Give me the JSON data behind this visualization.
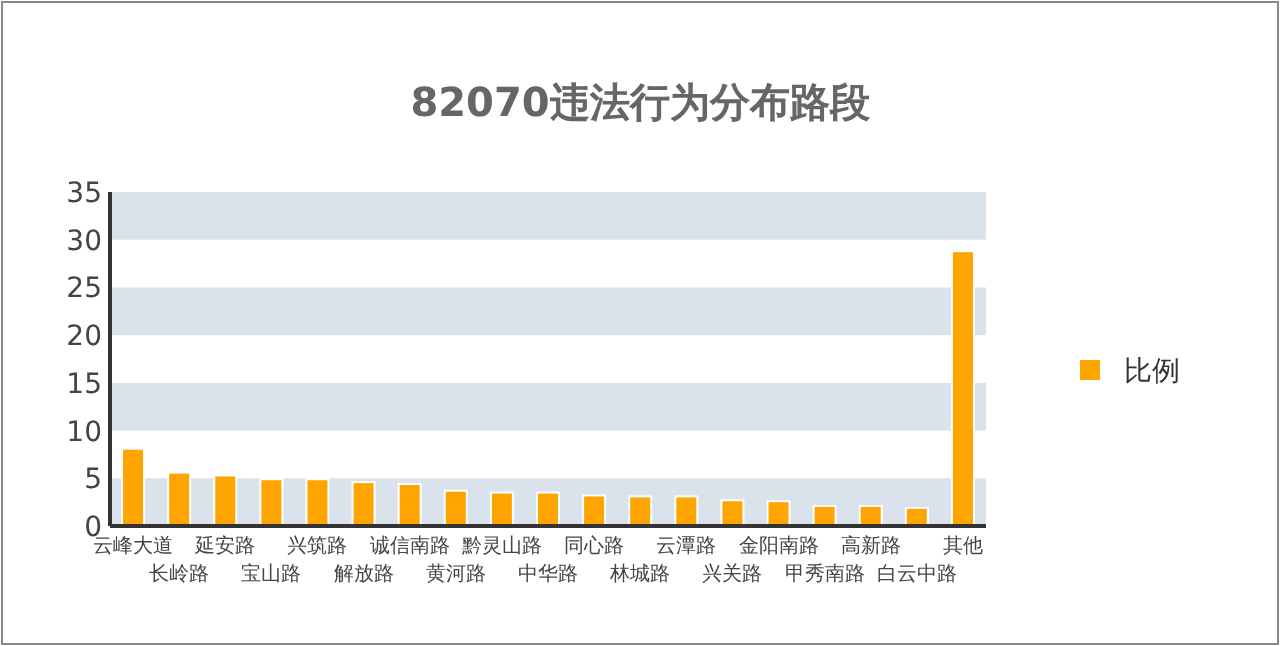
{
  "chart_data": {
    "type": "bar",
    "title": "82070违法行为分布路段",
    "categories": [
      "云峰大道",
      "长岭路",
      "延安路",
      "宝山路",
      "兴筑路",
      "解放路",
      "诚信南路",
      "黄河路",
      "黔灵山路",
      "中华路",
      "同心路",
      "林城路",
      "云潭路",
      "兴关路",
      "金阳南路",
      "甲秀南路",
      "高新路",
      "白云中路",
      "其他"
    ],
    "series": [
      {
        "name": "比例",
        "color": "#ffa500",
        "values": [
          8.1,
          5.6,
          5.3,
          4.9,
          4.9,
          4.6,
          4.4,
          3.7,
          3.5,
          3.5,
          3.2,
          3.1,
          3.1,
          2.7,
          2.6,
          2.1,
          2.1,
          1.9,
          28.8
        ]
      }
    ],
    "ylim": [
      0,
      35
    ],
    "yticks": [
      0,
      5,
      10,
      15,
      20,
      25,
      30,
      35
    ],
    "bands": [
      {
        "axis": "y",
        "from": 0,
        "to": 5,
        "color": "#dae3ec"
      },
      {
        "axis": "y",
        "from": 10,
        "to": 15,
        "color": "#dae3ec"
      },
      {
        "axis": "y",
        "from": 20,
        "to": 25,
        "color": "#dae3ec"
      },
      {
        "axis": "y",
        "from": 30,
        "to": 35,
        "color": "#dae3ec"
      }
    ],
    "legend": "right",
    "grid": false
  }
}
